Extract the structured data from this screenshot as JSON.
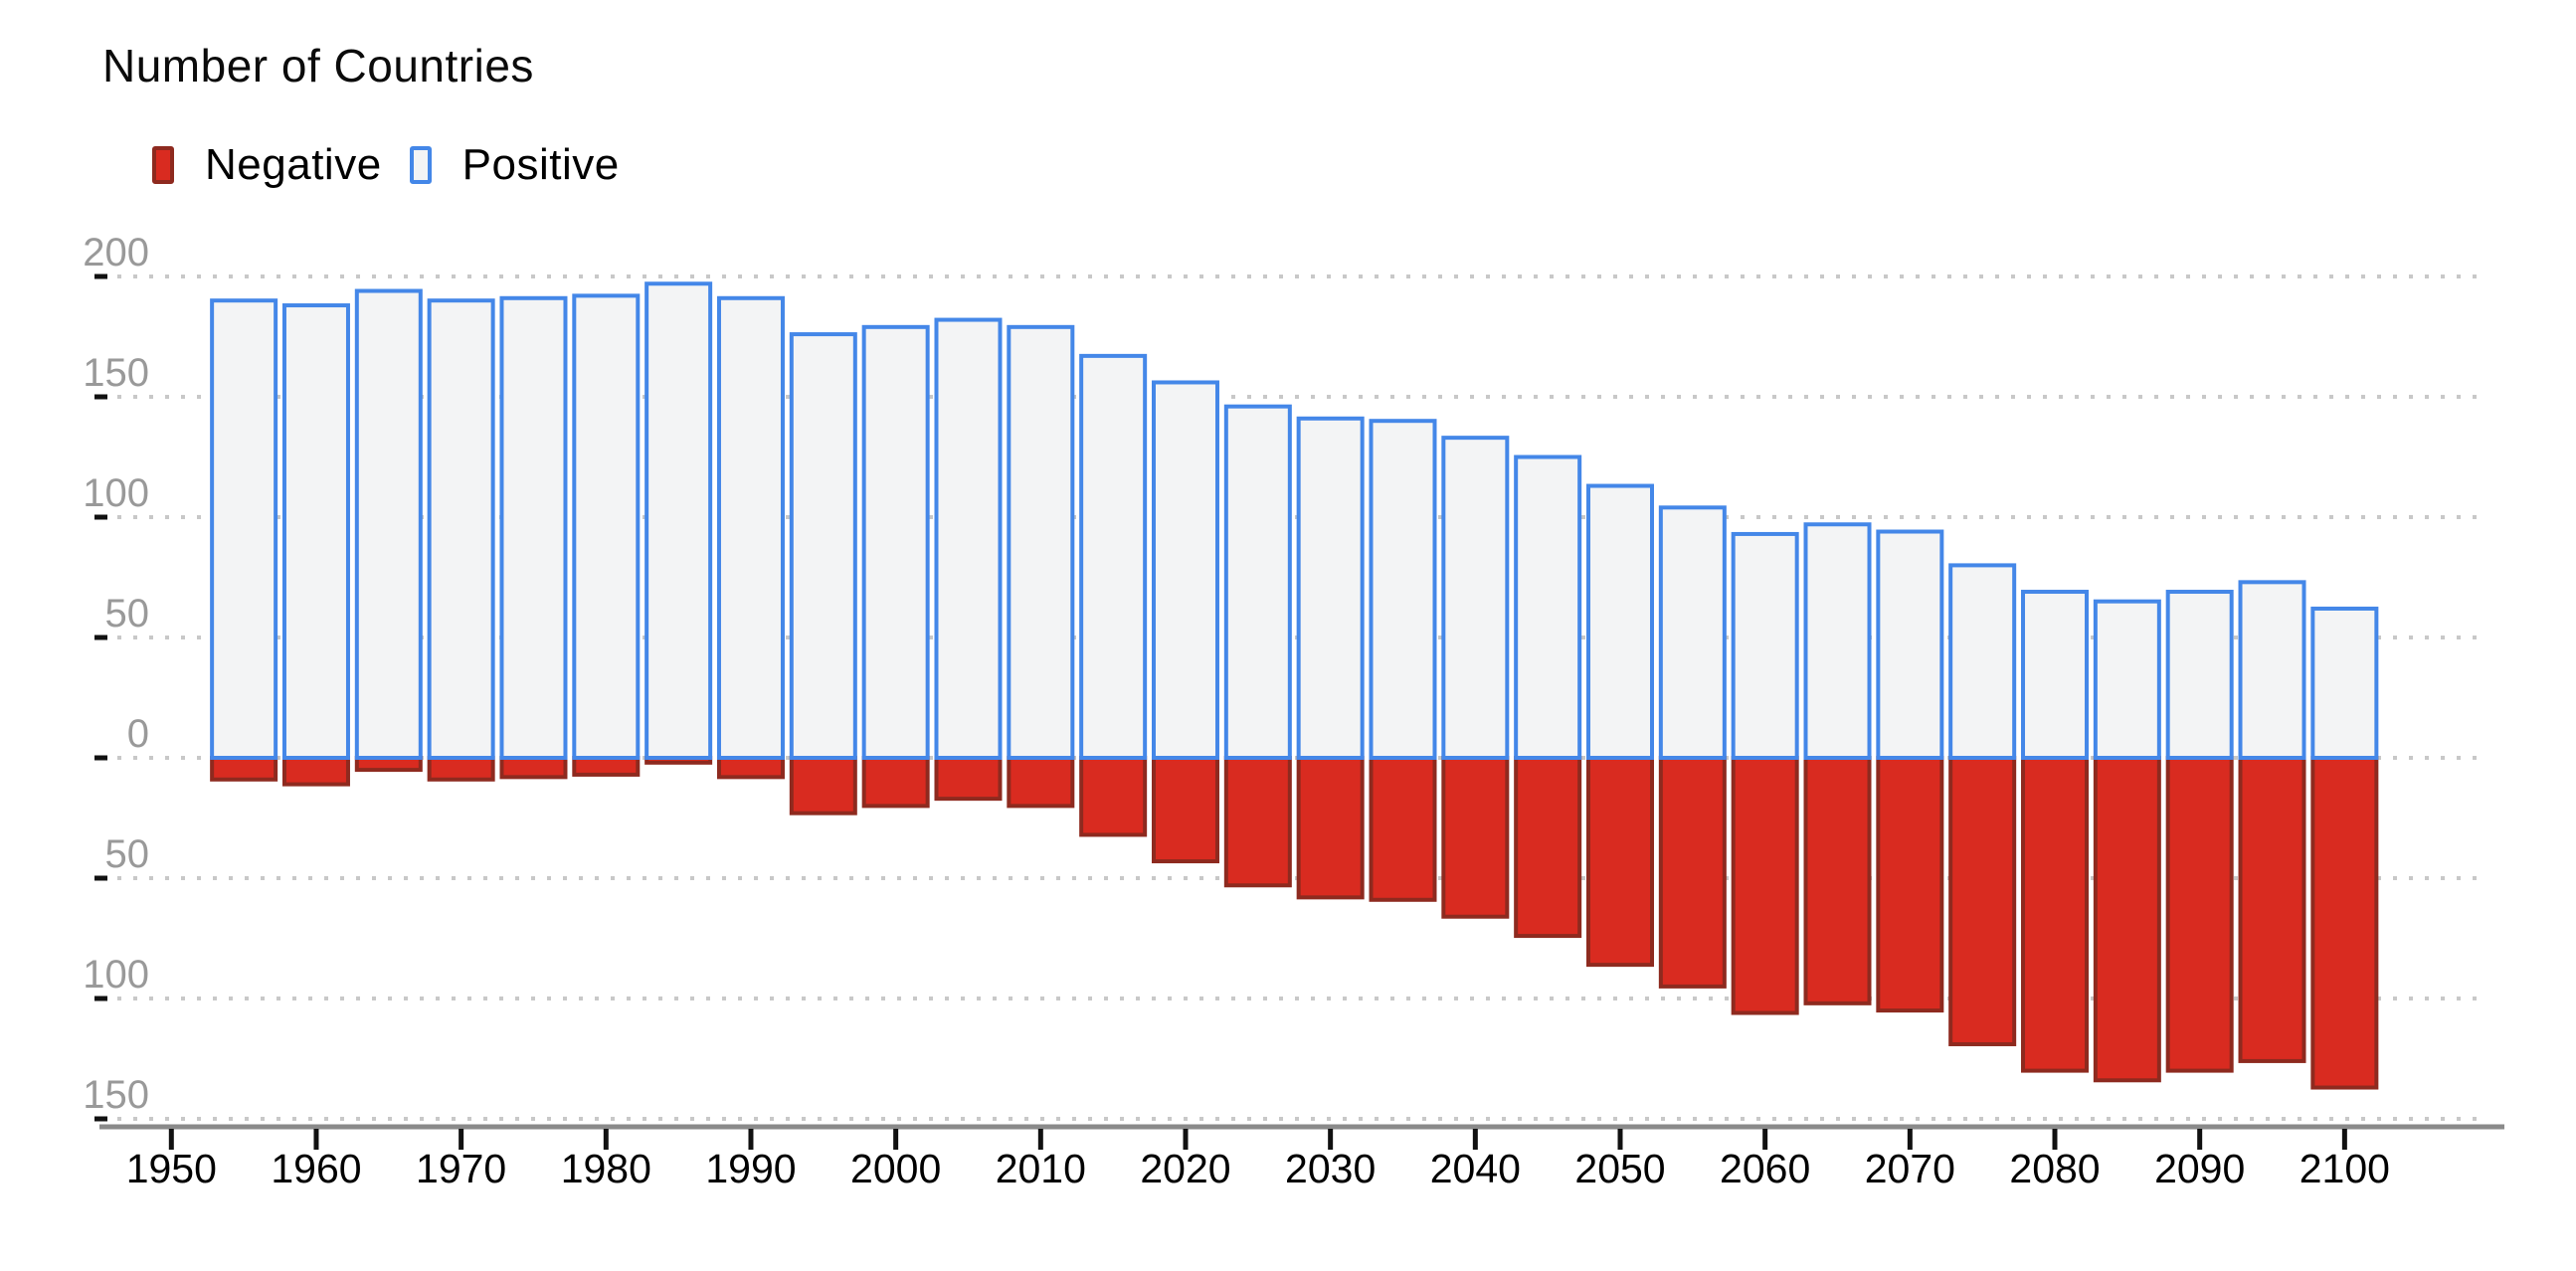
{
  "header": {
    "title": "Number of Countries"
  },
  "legend": [
    {
      "label": "Negative",
      "swatch_fill": "#d92b20",
      "swatch_border": "#8e2a1f"
    },
    {
      "label": "Positive",
      "swatch_fill": "#f3f4f5",
      "swatch_border": "#4487e8"
    }
  ],
  "chart_data": {
    "type": "bar",
    "subtype": "diverging-vertical",
    "title": "Number of Countries",
    "categories": [
      1955,
      1960,
      1965,
      1970,
      1975,
      1980,
      1985,
      1990,
      1995,
      2000,
      2005,
      2010,
      2015,
      2020,
      2025,
      2030,
      2035,
      2040,
      2045,
      2050,
      2055,
      2060,
      2065,
      2070,
      2075,
      2080,
      2085,
      2090,
      2095,
      2100
    ],
    "series": [
      {
        "name": "Negative",
        "fill": "#d92b20",
        "border": "#8e2a1f",
        "values": [
          -9,
          -11,
          -5,
          -9,
          -8,
          -7,
          -2,
          -8,
          -23,
          -20,
          -17,
          -20,
          -32,
          -43,
          -53,
          -58,
          -59,
          -66,
          -74,
          -86,
          -95,
          -106,
          -102,
          -105,
          -119,
          -130,
          -134,
          -130,
          -126,
          -137
        ]
      },
      {
        "name": "Positive",
        "fill": "#f3f4f5",
        "border": "#4487e8",
        "values": [
          190,
          188,
          194,
          190,
          191,
          192,
          197,
          191,
          176,
          179,
          182,
          179,
          167,
          156,
          146,
          141,
          140,
          133,
          125,
          113,
          104,
          93,
          97,
          94,
          80,
          69,
          65,
          69,
          73,
          62
        ]
      }
    ],
    "xlabel": "",
    "ylabel": "",
    "ylim": [
      -155,
      210
    ],
    "y_axis": {
      "tick_values": [
        200,
        150,
        100,
        50,
        0,
        -50,
        -100,
        -150
      ],
      "tick_labels": [
        "200",
        "150",
        "100",
        "50",
        "0",
        "50",
        "100",
        "150"
      ],
      "label_color": "#999999",
      "tick_color": "#111111"
    },
    "x_axis": {
      "tick_years": [
        1950,
        1960,
        1970,
        1980,
        1990,
        2000,
        2010,
        2020,
        2030,
        2040,
        2050,
        2060,
        2070,
        2080,
        2090,
        2100
      ],
      "tick_labels": [
        "1950",
        "1960",
        "1970",
        "1980",
        "1990",
        "2000",
        "2010",
        "2020",
        "2030",
        "2040",
        "2050",
        "2060",
        "2070",
        "2080",
        "2090",
        "2100"
      ],
      "label_color": "#000000",
      "axis_line_color": "#8a8a8a"
    },
    "grid": {
      "horizontal_dotted": true,
      "color": "#c8c8c8"
    },
    "legend_position": "top-left"
  }
}
